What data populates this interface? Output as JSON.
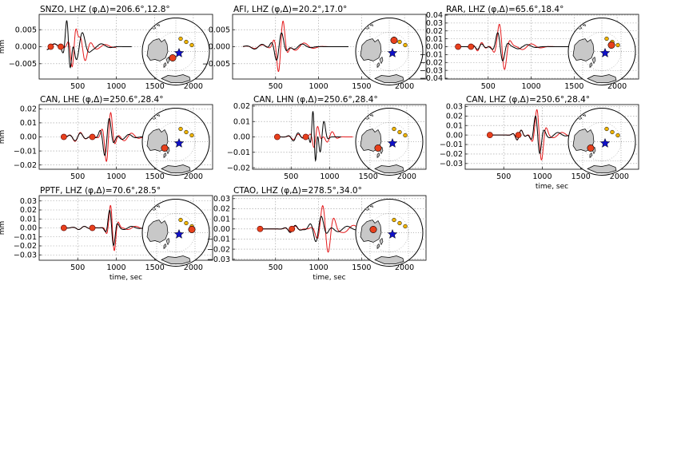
{
  "colors": {
    "observed": "#000000",
    "synthetic": "#e41a1c",
    "station": "#e8401c",
    "event_star": "#1010c8",
    "other_station": "#f0b400",
    "land": "#c8c8c8"
  },
  "chart_data": [
    {
      "type": "line",
      "title": "SNZO, LHZ (φ,Δ)=206.6°,12.8°",
      "ylabel": "mm",
      "xlabel": "",
      "xlim": [
        0,
        2250
      ],
      "ylim": [
        -0.0095,
        0.0095
      ],
      "xticks": [
        500,
        1000,
        1500,
        2000
      ],
      "yticks": [
        -0.005,
        0.0,
        0.005
      ],
      "ytick_labels": [
        "−0.005",
        "0.000",
        "0.005"
      ],
      "markers": [
        [
          150,
          0
        ],
        [
          280,
          0
        ]
      ],
      "map_station": [
        -4,
        8
      ],
      "trace": "snzo"
    },
    {
      "type": "line",
      "title": "AFI, LHZ (φ,Δ)=20.2°,17.0°",
      "ylabel": "",
      "xlabel": "",
      "xlim": [
        0,
        2250
      ],
      "ylim": [
        -0.0095,
        0.0095
      ],
      "xticks": [
        500,
        1000,
        1500,
        2000
      ],
      "yticks": [
        -0.005,
        0.0,
        0.005
      ],
      "ytick_labels": [
        "−0.005",
        "0.000",
        "0.005"
      ],
      "markers": [],
      "map_station": [
        6,
        -14
      ],
      "trace": "afi"
    },
    {
      "type": "line",
      "title": "RAR, LHZ (φ,Δ)=65.6°,18.4°",
      "ylabel": "",
      "xlabel": "",
      "xlim": [
        0,
        2250
      ],
      "ylim": [
        -0.041,
        0.041
      ],
      "xticks": [
        500,
        1000,
        1500,
        2000
      ],
      "yticks": [
        -0.04,
        -0.03,
        -0.02,
        -0.01,
        0.0,
        0.01,
        0.02,
        0.03,
        0.04
      ],
      "ytick_labels": [
        "−0.04",
        "−0.03",
        "−0.02",
        "−0.01",
        "0.00",
        "0.01",
        "0.02",
        "0.03",
        "0.04"
      ],
      "markers": [
        [
          150,
          0
        ],
        [
          300,
          0
        ]
      ],
      "map_station": [
        12,
        -8
      ],
      "trace": "rar"
    },
    {
      "type": "line",
      "title": "CAN, LHE (φ,Δ)=250.6°,28.4°",
      "ylabel": "mm",
      "xlabel": "",
      "xlim": [
        0,
        2250
      ],
      "ylim": [
        -0.023,
        0.023
      ],
      "xticks": [
        500,
        1000,
        1500,
        2000
      ],
      "yticks": [
        -0.02,
        -0.01,
        0.0,
        0.01,
        0.02
      ],
      "ytick_labels": [
        "−0.02",
        "−0.01",
        "0.00",
        "0.01",
        "0.02"
      ],
      "markers": [
        [
          320,
          0
        ],
        [
          690,
          0
        ]
      ],
      "map_station": [
        -14,
        8
      ],
      "trace": "canlhe"
    },
    {
      "type": "line",
      "title": "CAN, LHN (φ,Δ)=250.6°,28.4°",
      "ylabel": "",
      "xlabel": "",
      "xlim": [
        0,
        2250
      ],
      "ylim": [
        -0.021,
        0.021
      ],
      "xticks": [
        500,
        1000,
        1500,
        2000
      ],
      "yticks": [
        -0.02,
        -0.01,
        0.0,
        0.01,
        0.02
      ],
      "ytick_labels": [
        "−0.02",
        "−0.01",
        "0.00",
        "0.01",
        "0.02"
      ],
      "markers": [
        [
          320,
          0
        ],
        [
          690,
          0
        ]
      ],
      "map_station": [
        -14,
        8
      ],
      "trace": "canlhn"
    },
    {
      "type": "line",
      "title": "CAN, LHZ (φ,Δ)=250.6°,28.4°",
      "ylabel": "",
      "xlabel": "time, sec",
      "xlim": [
        0,
        2250
      ],
      "ylim": [
        -0.036,
        0.032
      ],
      "xticks": [
        500,
        1000,
        1500,
        2000
      ],
      "yticks": [
        -0.03,
        -0.02,
        -0.01,
        0.0,
        0.01,
        0.02,
        0.03
      ],
      "ytick_labels": [
        "−0.03",
        "−0.02",
        "−0.01",
        "0.00",
        "0.01",
        "0.02",
        "0.03"
      ],
      "markers": [
        [
          320,
          0
        ],
        [
          690,
          0
        ]
      ],
      "map_station": [
        -14,
        8
      ],
      "trace": "canlhz"
    },
    {
      "type": "line",
      "title": "PPTF, LHZ (φ,Δ)=70.6°,28.5°",
      "ylabel": "mm",
      "xlabel": "time, sec",
      "xlim": [
        0,
        2250
      ],
      "ylim": [
        -0.036,
        0.036
      ],
      "xticks": [
        500,
        1000,
        1500,
        2000
      ],
      "yticks": [
        -0.03,
        -0.02,
        -0.01,
        0.0,
        0.01,
        0.02,
        0.03
      ],
      "ytick_labels": [
        "−0.03",
        "−0.02",
        "−0.01",
        "0.00",
        "0.01",
        "0.02",
        "0.03"
      ],
      "markers": [
        [
          320,
          0
        ],
        [
          690,
          0
        ]
      ],
      "map_station": [
        20,
        -4
      ],
      "trace": "pptf"
    },
    {
      "type": "line",
      "title": "CTAO, LHZ (φ,Δ)=278.5°,34.0°",
      "ylabel": "",
      "xlabel": "time, sec",
      "xlim": [
        0,
        2250
      ],
      "ylim": [
        -0.031,
        0.033
      ],
      "xticks": [
        500,
        1000,
        1500,
        2000
      ],
      "yticks": [
        -0.03,
        -0.02,
        -0.01,
        0.0,
        0.01,
        0.02,
        0.03
      ],
      "ytick_labels": [
        "−0.03",
        "−0.02",
        "−0.01",
        "0.00",
        "0.01",
        "0.02",
        "0.03"
      ],
      "markers": [
        [
          320,
          0
        ],
        [
          690,
          0
        ]
      ],
      "map_station": [
        -20,
        -4
      ],
      "trace": "ctao"
    }
  ]
}
